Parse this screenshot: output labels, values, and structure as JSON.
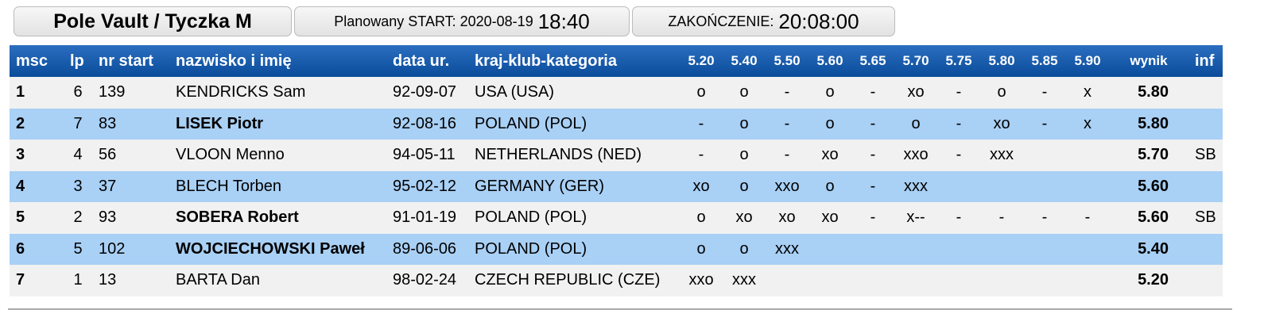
{
  "header": {
    "title": "Pole Vault / Tyczka M",
    "start_label": "Planowany START: 2020-08-19",
    "start_time": "18:40",
    "end_label": "ZAKOŃCZENIE:",
    "end_time": "20:08:00"
  },
  "table": {
    "columns": [
      "msc",
      "lp",
      "nr start",
      "nazwisko i imię",
      "data ur.",
      "kraj-klub-kategoria"
    ],
    "heights": [
      "5.20",
      "5.40",
      "5.50",
      "5.60",
      "5.65",
      "5.70",
      "5.75",
      "5.80",
      "5.85",
      "5.90"
    ],
    "result_columns": [
      "wynik",
      "inf"
    ],
    "rows": [
      {
        "msc": "1",
        "lp": "6",
        "nr": "139",
        "name": "KENDRICKS Sam",
        "born": "92-09-07",
        "country": "USA (USA)",
        "attempts": [
          "o",
          "o",
          "-",
          "o",
          "-",
          "xo",
          "-",
          "o",
          "-",
          "x"
        ],
        "result": "5.80",
        "bold": false
      },
      {
        "msc": "2",
        "lp": "7",
        "nr": "83",
        "name": "LISEK Piotr",
        "born": "92-08-16",
        "country": "POLAND (POL)",
        "attempts": [
          "-",
          "o",
          "-",
          "o",
          "-",
          "o",
          "-",
          "xo",
          "-",
          "x"
        ],
        "result": "5.80",
        "bold": true
      },
      {
        "msc": "3",
        "lp": "4",
        "nr": "56",
        "name": "VLOON Menno",
        "born": "94-05-11",
        "country": "NETHERLANDS (NED)",
        "attempts": [
          "-",
          "o",
          "-",
          "xo",
          "-",
          "xxo",
          "-",
          "xxx",
          null,
          null
        ],
        "result": "5.70",
        "inf": "SB",
        "bold": false
      },
      {
        "msc": "4",
        "lp": "3",
        "nr": "37",
        "name": "BLECH Torben",
        "born": "95-02-12",
        "country": "GERMANY (GER)",
        "attempts": [
          "xo",
          "o",
          "xxo",
          "o",
          "-",
          "xxx",
          null,
          null,
          null,
          null
        ],
        "result": "5.60",
        "bold": false
      },
      {
        "msc": "5",
        "lp": "2",
        "nr": "93",
        "name": "SOBERA Robert",
        "born": "91-01-19",
        "country": "POLAND (POL)",
        "attempts": [
          "o",
          "xo",
          "xo",
          "xo",
          "-",
          "x--",
          "-",
          "-",
          "-",
          "-"
        ],
        "result": "5.60",
        "inf": "SB",
        "bold": true
      },
      {
        "msc": "6",
        "lp": "5",
        "nr": "102",
        "name": "WOJCIECHOWSKI Paweł",
        "born": "89-06-06",
        "country": "POLAND (POL)",
        "attempts": [
          "o",
          "o",
          "xxx",
          null,
          null,
          null,
          null,
          null,
          null,
          null
        ],
        "result": "5.40",
        "bold": true
      },
      {
        "msc": "7",
        "lp": "1",
        "nr": "13",
        "name": "BARTA Dan",
        "born": "98-02-24",
        "country": "CZECH REPUBLIC (CZE)",
        "attempts": [
          "xxo",
          "xxx",
          null,
          null,
          null,
          null,
          null,
          null,
          null,
          null
        ],
        "result": "5.20",
        "bold": false
      }
    ]
  }
}
